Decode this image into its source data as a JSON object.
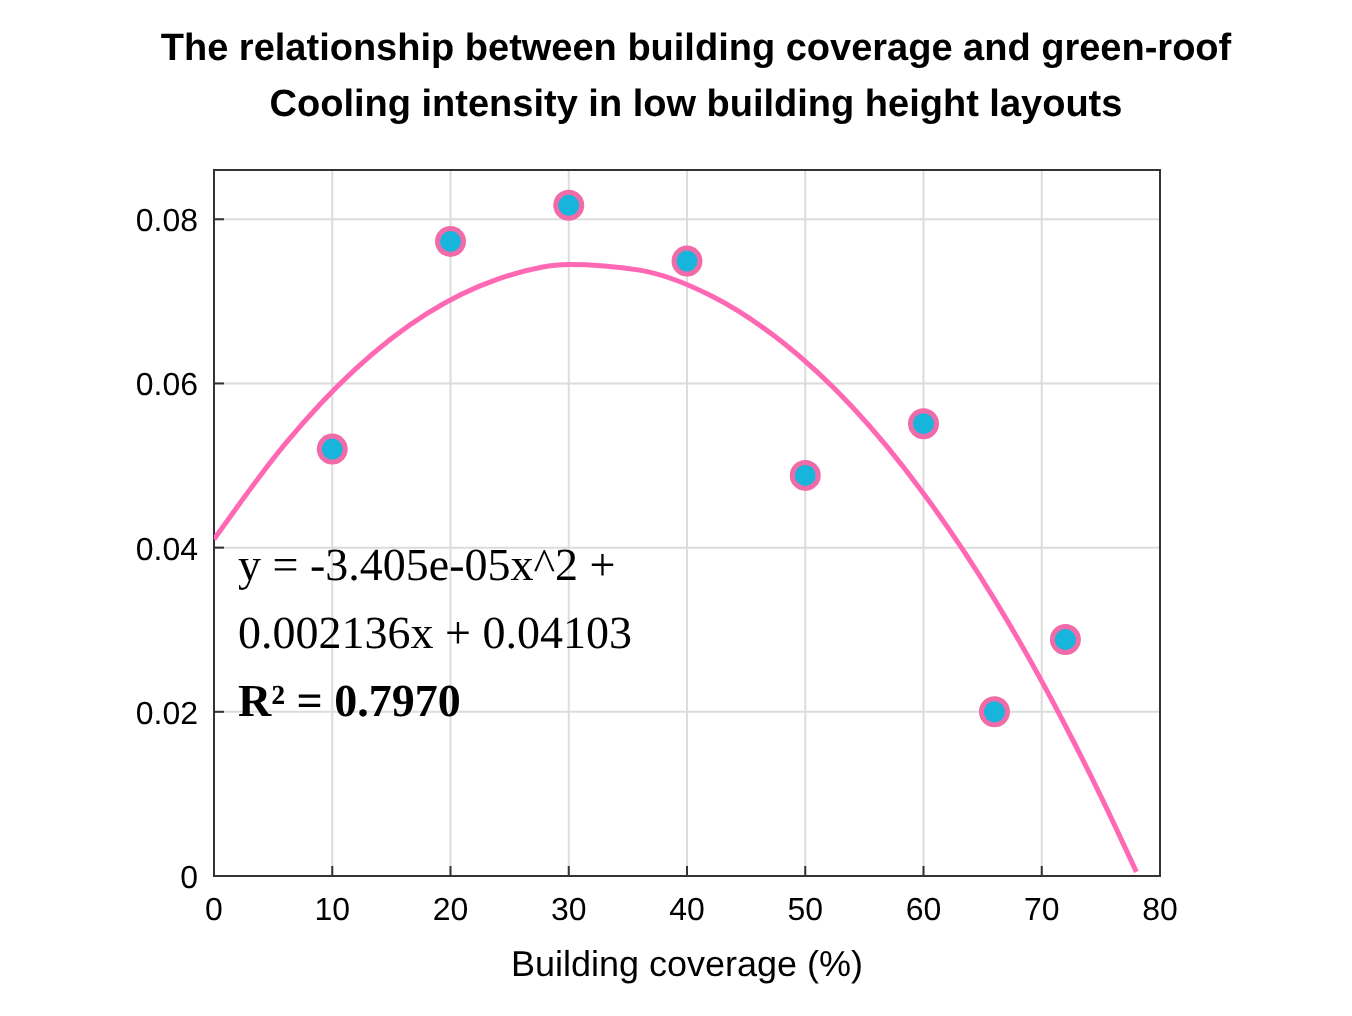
{
  "chart_data": {
    "type": "scatter",
    "title": "The relationship between building coverage and green-roof Cooling intensity in low building height layouts",
    "xlabel": "Building coverage (%)",
    "x": [
      10,
      20,
      30,
      40,
      50,
      60,
      66,
      72
    ],
    "series": [
      {
        "color": "#17b4dc",
        "values": [
          0.052,
          0.0773,
          0.0817,
          0.0749,
          0.0488,
          0.0551,
          0.02,
          0.0288
        ]
      },
      {
        "type": "line",
        "color": "#ff69b4",
        "x": [
          0,
          6,
          12,
          18,
          24,
          30,
          36,
          42,
          48,
          54,
          60,
          66,
          72,
          75,
          78
        ],
        "values": [
          0.041,
          0.0526,
          0.0618,
          0.0685,
          0.0727,
          0.0745,
          0.0738,
          0.0707,
          0.0651,
          0.0571,
          0.0466,
          0.0337,
          0.0183,
          0.0097,
          0.0005
        ],
        "marker": "none"
      }
    ],
    "marker": "circle",
    "xlim": [
      0,
      80
    ],
    "ylim": [
      0,
      0.086
    ],
    "xticks": [
      0,
      10,
      20,
      30,
      40,
      50,
      60,
      70,
      80
    ],
    "yticks": [
      0,
      0.02,
      0.04,
      0.06,
      0.08
    ],
    "grid": true,
    "annotations": [
      "y = -3.405e-05x^2 + 0.002136x + 0.04103",
      "R² = 0.7970"
    ]
  }
}
